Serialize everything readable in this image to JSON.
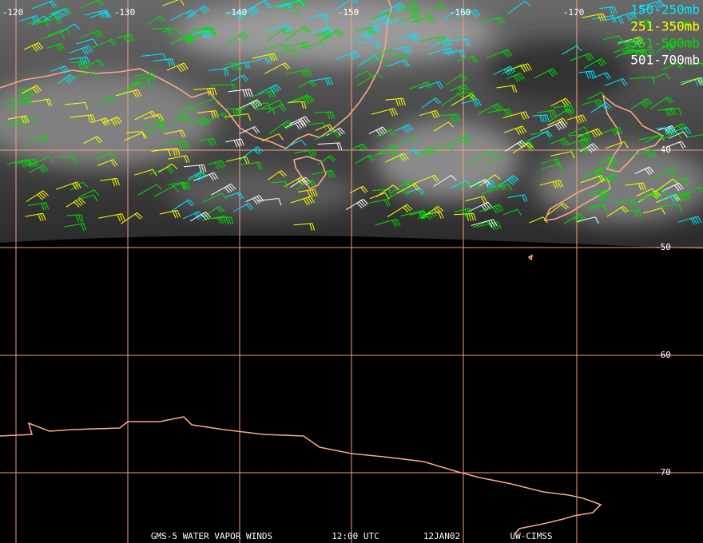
{
  "map": {
    "longitude_labels": [
      "-120",
      "-130",
      "-140",
      "-150",
      "-160",
      "-170"
    ],
    "latitude_labels": [
      "-40",
      "-50",
      "-60",
      "-70"
    ],
    "legend": [
      {
        "label": "150-250mb",
        "color": "#00e8ff"
      },
      {
        "label": "251-350mb",
        "color": "#ffff00"
      },
      {
        "label": "351-500mb",
        "color": "#00e000"
      },
      {
        "label": "501-700mb",
        "color": "#ffffff"
      }
    ],
    "footer": [
      "GMS-5 WATER VAPOR WINDS",
      "12:00 UTC",
      "12JAN02",
      "UW-CIMSS"
    ]
  }
}
